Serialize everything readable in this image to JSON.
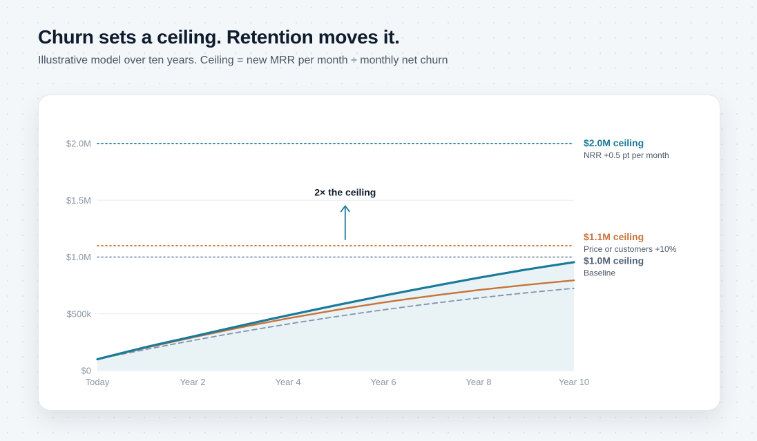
{
  "header": {
    "title": "Churn sets a ceiling. Retention moves it.",
    "subtitle": "Illustrative model over ten years. Ceiling = new MRR per month ÷ monthly net churn"
  },
  "chart_data": {
    "type": "line",
    "title": "Churn sets a ceiling. Retention moves it.",
    "xlabel": "",
    "ylabel": "",
    "xlim": [
      0,
      10
    ],
    "ylim": [
      0,
      2000000
    ],
    "x_ticks": [
      {
        "value": 0,
        "label": "Today"
      },
      {
        "value": 2,
        "label": "Year 2"
      },
      {
        "value": 4,
        "label": "Year 4"
      },
      {
        "value": 6,
        "label": "Year 6"
      },
      {
        "value": 8,
        "label": "Year 8"
      },
      {
        "value": 10,
        "label": "Year 10"
      }
    ],
    "y_ticks": [
      {
        "value": 0,
        "label": "$0"
      },
      {
        "value": 500000,
        "label": "$500k"
      },
      {
        "value": 1000000,
        "label": "$1.0M"
      },
      {
        "value": 1500000,
        "label": "$1.5M"
      },
      {
        "value": 2000000,
        "label": "$2.0M"
      }
    ],
    "grid": true,
    "series": [
      {
        "key": "nrr",
        "color": "#1b7a99",
        "style": "solid",
        "fill": true,
        "points": [
          [
            0,
            100000
          ],
          [
            1,
            205000
          ],
          [
            2,
            300000
          ],
          [
            3,
            395000
          ],
          [
            4,
            487000
          ],
          [
            5,
            575000
          ],
          [
            6,
            660000
          ],
          [
            7,
            740000
          ],
          [
            8,
            818000
          ],
          [
            9,
            890000
          ],
          [
            10,
            955000
          ]
        ]
      },
      {
        "key": "price",
        "color": "#c8733a",
        "style": "solid",
        "fill": false,
        "points": [
          [
            0,
            100000
          ],
          [
            1,
            200000
          ],
          [
            2,
            292000
          ],
          [
            3,
            380000
          ],
          [
            4,
            460000
          ],
          [
            5,
            533000
          ],
          [
            6,
            600000
          ],
          [
            7,
            658000
          ],
          [
            8,
            710000
          ],
          [
            9,
            755000
          ],
          [
            10,
            795000
          ]
        ]
      },
      {
        "key": "baseline",
        "color": "#7f94ab",
        "style": "dashed",
        "fill": false,
        "points": [
          [
            0,
            100000
          ],
          [
            1,
            185000
          ],
          [
            2,
            265000
          ],
          [
            3,
            340000
          ],
          [
            4,
            410000
          ],
          [
            5,
            475000
          ],
          [
            6,
            535000
          ],
          [
            7,
            590000
          ],
          [
            8,
            640000
          ],
          [
            9,
            685000
          ],
          [
            10,
            725000
          ]
        ]
      }
    ],
    "ceilings": [
      {
        "value": 2000000,
        "color": "#1b7a99",
        "label": "$2.0M ceiling",
        "sub": "NRR +0.5 pt per month"
      },
      {
        "value": 1100000,
        "color": "#c8733a",
        "label": "$1.1M ceiling",
        "sub": "Price or customers +10%"
      },
      {
        "value": 1000000,
        "color": "#7f94ab",
        "label": "$1.0M ceiling",
        "sub": "Baseline"
      }
    ],
    "annotation": {
      "text": "2× the ceiling",
      "x": 5.2,
      "y_from": 1150000,
      "y_to": 1450000
    },
    "colors": {
      "grid": "#e9edf1",
      "area_fill": "#e9f3f6",
      "ceiling_label_baseline": "#55657a"
    }
  }
}
